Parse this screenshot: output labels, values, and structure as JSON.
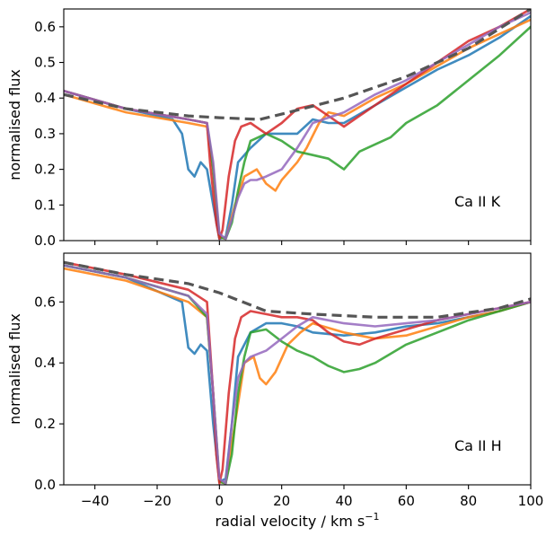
{
  "chart_data": [
    {
      "type": "line",
      "panel": "top",
      "annotation": "Ca II K",
      "ylabel": "normalised flux",
      "xlim": [
        -50,
        100
      ],
      "ylim": [
        0,
        0.65
      ],
      "yticks": [
        "0.0",
        "0.1",
        "0.2",
        "0.3",
        "0.4",
        "0.5",
        "0.6"
      ],
      "model": {
        "x": [
          -50,
          -30,
          -10,
          0,
          13,
          20,
          40,
          60,
          80,
          100
        ],
        "y": [
          0.41,
          0.37,
          0.35,
          0.345,
          0.34,
          0.355,
          0.4,
          0.46,
          0.54,
          0.65
        ],
        "color": "#555555"
      },
      "series": [
        {
          "color": "#1f77b4",
          "x": [
            -50,
            -30,
            -15,
            -12,
            -10,
            -8,
            -6,
            -4,
            -2,
            0,
            2,
            4,
            6,
            10,
            15,
            20,
            25,
            30,
            35,
            40,
            50,
            60,
            70,
            80,
            90,
            100
          ],
          "y": [
            0.42,
            0.37,
            0.34,
            0.3,
            0.2,
            0.18,
            0.22,
            0.2,
            0.1,
            0.005,
            0.01,
            0.1,
            0.22,
            0.26,
            0.3,
            0.3,
            0.3,
            0.34,
            0.33,
            0.33,
            0.38,
            0.43,
            0.48,
            0.52,
            0.57,
            0.63
          ]
        },
        {
          "color": "#ff7f0e",
          "x": [
            -50,
            -30,
            -10,
            -4,
            -2,
            0,
            2,
            5,
            8,
            12,
            15,
            18,
            20,
            25,
            28,
            32,
            35,
            40,
            50,
            60,
            70,
            80,
            90,
            100
          ],
          "y": [
            0.41,
            0.36,
            0.33,
            0.32,
            0.2,
            0.01,
            0.005,
            0.1,
            0.18,
            0.2,
            0.16,
            0.14,
            0.17,
            0.22,
            0.26,
            0.33,
            0.36,
            0.35,
            0.4,
            0.44,
            0.49,
            0.54,
            0.58,
            0.62
          ]
        },
        {
          "color": "#2ca02c",
          "x": [
            -50,
            -30,
            -10,
            -4,
            -2,
            0,
            2,
            4,
            6,
            8,
            10,
            15,
            20,
            25,
            30,
            35,
            40,
            45,
            50,
            55,
            60,
            70,
            80,
            90,
            100
          ],
          "y": [
            0.42,
            0.37,
            0.34,
            0.33,
            0.2,
            0.01,
            0.005,
            0.05,
            0.14,
            0.22,
            0.28,
            0.3,
            0.28,
            0.25,
            0.24,
            0.23,
            0.2,
            0.25,
            0.27,
            0.29,
            0.33,
            0.38,
            0.45,
            0.52,
            0.6
          ]
        },
        {
          "color": "#d62728",
          "x": [
            -50,
            -30,
            -10,
            -4,
            -3,
            -1,
            0,
            1,
            3,
            5,
            7,
            10,
            15,
            20,
            25,
            30,
            35,
            40,
            45,
            50,
            60,
            70,
            80,
            90,
            100
          ],
          "y": [
            0.42,
            0.37,
            0.34,
            0.33,
            0.22,
            0.05,
            0.005,
            0.03,
            0.18,
            0.28,
            0.32,
            0.33,
            0.3,
            0.33,
            0.37,
            0.38,
            0.35,
            0.32,
            0.35,
            0.38,
            0.44,
            0.5,
            0.56,
            0.6,
            0.65
          ]
        },
        {
          "color": "#9467bd",
          "x": [
            -50,
            -30,
            -10,
            -4,
            -2,
            0,
            2,
            4,
            6,
            8,
            10,
            12,
            15,
            20,
            25,
            30,
            40,
            50,
            60,
            70,
            80,
            90,
            100
          ],
          "y": [
            0.42,
            0.37,
            0.34,
            0.33,
            0.22,
            0.02,
            0.005,
            0.06,
            0.12,
            0.16,
            0.17,
            0.17,
            0.18,
            0.2,
            0.26,
            0.33,
            0.36,
            0.41,
            0.45,
            0.5,
            0.55,
            0.6,
            0.64
          ]
        }
      ]
    },
    {
      "type": "line",
      "panel": "bottom",
      "annotation": "Ca II H",
      "ylabel": "normalised flux",
      "xlabel": "radial velocity / km s",
      "xlabel_sup": "−1",
      "xlim": [
        -50,
        100
      ],
      "ylim": [
        0,
        0.76
      ],
      "yticks": [
        "0.0",
        "0.2",
        "0.4",
        "0.6"
      ],
      "xticks": [
        "−40",
        "−20",
        "0",
        "20",
        "40",
        "60",
        "80",
        "100"
      ],
      "xtick_values": [
        -40,
        -20,
        0,
        20,
        40,
        60,
        80,
        100
      ],
      "model": {
        "x": [
          -50,
          -30,
          -10,
          0,
          15,
          30,
          50,
          70,
          90,
          100
        ],
        "y": [
          0.73,
          0.69,
          0.66,
          0.63,
          0.57,
          0.56,
          0.55,
          0.55,
          0.58,
          0.61
        ],
        "color": "#555555"
      },
      "series": [
        {
          "color": "#1f77b4",
          "x": [
            -50,
            -30,
            -12,
            -10,
            -8,
            -6,
            -4,
            -2,
            0,
            2,
            4,
            6,
            10,
            15,
            20,
            25,
            30,
            40,
            50,
            60,
            70,
            80,
            90,
            100
          ],
          "y": [
            0.72,
            0.68,
            0.6,
            0.45,
            0.43,
            0.46,
            0.44,
            0.2,
            0.01,
            0.02,
            0.2,
            0.42,
            0.5,
            0.53,
            0.53,
            0.52,
            0.5,
            0.49,
            0.5,
            0.52,
            0.53,
            0.55,
            0.57,
            0.6
          ]
        },
        {
          "color": "#ff7f0e",
          "x": [
            -50,
            -30,
            -10,
            -4,
            -2,
            0,
            2,
            5,
            8,
            11,
            13,
            15,
            18,
            22,
            26,
            30,
            40,
            50,
            60,
            70,
            80,
            90,
            100
          ],
          "y": [
            0.71,
            0.67,
            0.6,
            0.55,
            0.3,
            0.01,
            0.005,
            0.2,
            0.4,
            0.42,
            0.35,
            0.33,
            0.37,
            0.46,
            0.5,
            0.53,
            0.5,
            0.48,
            0.49,
            0.52,
            0.55,
            0.57,
            0.6
          ]
        },
        {
          "color": "#2ca02c",
          "x": [
            -50,
            -30,
            -10,
            -4,
            -2,
            0,
            2,
            4,
            6,
            8,
            10,
            15,
            20,
            25,
            30,
            35,
            40,
            45,
            50,
            55,
            60,
            70,
            80,
            90,
            100
          ],
          "y": [
            0.72,
            0.68,
            0.62,
            0.55,
            0.3,
            0.01,
            0.005,
            0.1,
            0.3,
            0.42,
            0.5,
            0.51,
            0.47,
            0.44,
            0.42,
            0.39,
            0.37,
            0.38,
            0.4,
            0.43,
            0.46,
            0.5,
            0.54,
            0.57,
            0.6
          ]
        },
        {
          "color": "#d62728",
          "x": [
            -50,
            -30,
            -10,
            -4,
            -2,
            -1,
            0,
            1,
            3,
            5,
            7,
            10,
            15,
            20,
            25,
            30,
            35,
            40,
            45,
            50,
            60,
            70,
            80,
            90,
            100
          ],
          "y": [
            0.73,
            0.69,
            0.64,
            0.6,
            0.3,
            0.1,
            0.005,
            0.05,
            0.3,
            0.48,
            0.55,
            0.57,
            0.56,
            0.55,
            0.55,
            0.54,
            0.5,
            0.47,
            0.46,
            0.48,
            0.51,
            0.54,
            0.56,
            0.58,
            0.6
          ]
        },
        {
          "color": "#9467bd",
          "x": [
            -50,
            -30,
            -10,
            -4,
            -2,
            0,
            2,
            4,
            6,
            8,
            10,
            15,
            20,
            25,
            30,
            40,
            50,
            60,
            70,
            80,
            90,
            100
          ],
          "y": [
            0.72,
            0.68,
            0.62,
            0.56,
            0.3,
            0.02,
            0.005,
            0.2,
            0.35,
            0.4,
            0.42,
            0.44,
            0.48,
            0.52,
            0.55,
            0.53,
            0.52,
            0.53,
            0.54,
            0.56,
            0.58,
            0.6
          ]
        }
      ]
    }
  ]
}
